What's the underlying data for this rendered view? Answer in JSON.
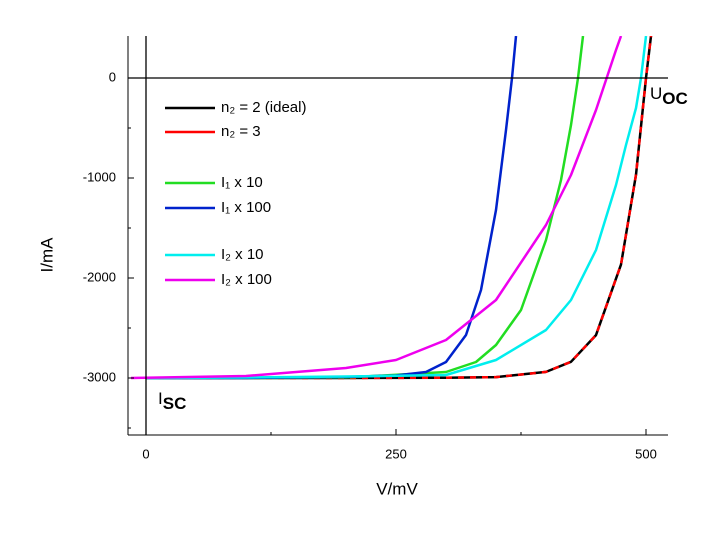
{
  "chart_data": {
    "type": "line",
    "x_label": "V/mV",
    "y_label": "I/mA",
    "xlim": [
      -18,
      522
    ],
    "ylim": [
      -3570,
      420
    ],
    "xticks": [
      0,
      250,
      500
    ],
    "xticks_minor": [
      125,
      375
    ],
    "yticks": [
      0,
      -1000,
      -2000,
      -3000
    ],
    "yticks_minor": [
      -500,
      -1500,
      -2500,
      -3500
    ],
    "zero_lines": true,
    "annotations": [
      {
        "text": "U",
        "sub": "OC",
        "x": 500,
        "y": -170
      },
      {
        "text": "I",
        "sub": "SC",
        "x": 8,
        "y": -3220
      }
    ],
    "series": [
      {
        "name": "n₂ = 2 (ideal)",
        "color": "#000000",
        "x": [
          0,
          100,
          200,
          300,
          350,
          400,
          425,
          450,
          475,
          490,
          500,
          505
        ],
        "values": [
          -3000,
          -3000,
          -3000,
          -2997,
          -2991,
          -2939,
          -2838,
          -2571,
          -1866,
          -967,
          0,
          420
        ]
      },
      {
        "name": "n₂ =  3",
        "color": "#ff0000",
        "x": [
          0,
          100,
          200,
          300,
          350,
          400,
          425,
          450,
          475,
          490,
          500,
          505
        ],
        "values": [
          -3000,
          -3000,
          -3000,
          -2997,
          -2991,
          -2939,
          -2838,
          -2571,
          -1866,
          -967,
          0,
          420
        ]
      },
      {
        "name": "I₁   x 10",
        "color": "#22dd22",
        "x": [
          0,
          100,
          200,
          300,
          330,
          350,
          375,
          400,
          415,
          425,
          432,
          437
        ],
        "values": [
          -3000,
          -3000,
          -2995,
          -2940,
          -2840,
          -2670,
          -2320,
          -1620,
          -1020,
          -470,
          0,
          420
        ]
      },
      {
        "name": "I₁   x 100",
        "color": "#0022cc",
        "x": [
          0,
          100,
          200,
          250,
          280,
          300,
          320,
          335,
          350,
          360,
          366,
          370
        ],
        "values": [
          -3000,
          -3000,
          -2990,
          -2975,
          -2940,
          -2840,
          -2570,
          -2120,
          -1320,
          -520,
          0,
          420
        ]
      },
      {
        "name": "I₂   x 10",
        "color": "#00eeee",
        "x": [
          0,
          100,
          200,
          300,
          350,
          400,
          425,
          450,
          470,
          480,
          490,
          495,
          500
        ],
        "values": [
          -3000,
          -2995,
          -2985,
          -2970,
          -2820,
          -2520,
          -2220,
          -1720,
          -1070,
          -670,
          -300,
          0,
          420
        ]
      },
      {
        "name": "I₂   x 100",
        "color": "#ee00ee",
        "x": [
          -15,
          100,
          200,
          250,
          300,
          350,
          400,
          425,
          450,
          460,
          470,
          475
        ],
        "values": [
          -3000,
          -2980,
          -2900,
          -2820,
          -2620,
          -2220,
          -1470,
          -970,
          -320,
          -20,
          280,
          420
        ]
      }
    ]
  }
}
